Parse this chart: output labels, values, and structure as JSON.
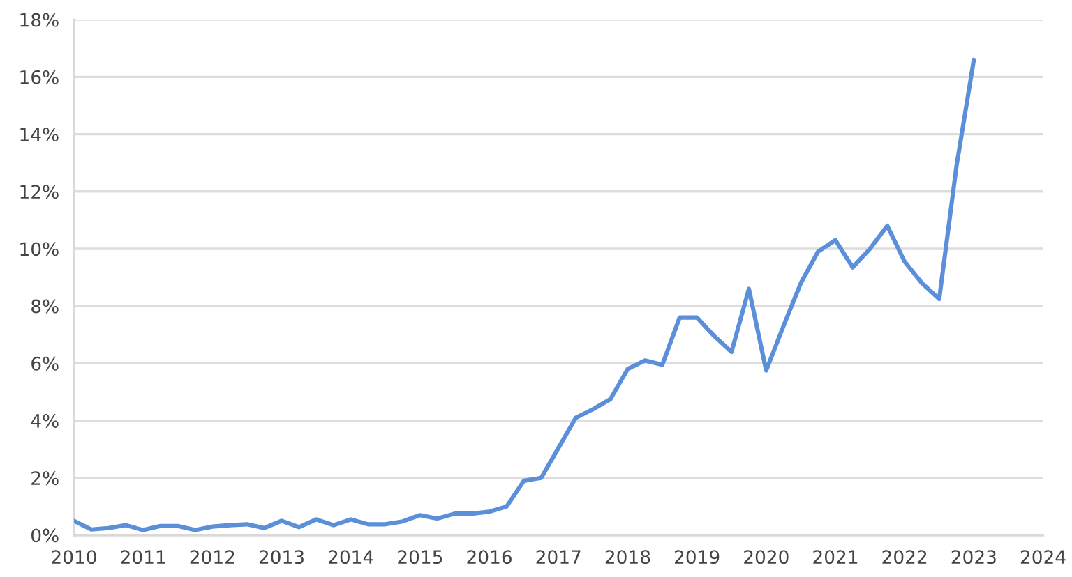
{
  "chart_data": {
    "type": "line",
    "x": [
      2010.0,
      2010.25,
      2010.5,
      2010.75,
      2011.0,
      2011.25,
      2011.5,
      2011.75,
      2012.0,
      2012.25,
      2012.5,
      2012.75,
      2013.0,
      2013.25,
      2013.5,
      2013.75,
      2014.0,
      2014.25,
      2014.5,
      2014.75,
      2015.0,
      2015.25,
      2015.5,
      2015.75,
      2016.0,
      2016.25,
      2016.5,
      2016.75,
      2017.0,
      2017.25,
      2017.5,
      2017.75,
      2018.0,
      2018.25,
      2018.5,
      2018.75,
      2019.0,
      2019.25,
      2019.5,
      2019.75,
      2020.0,
      2020.25,
      2020.5,
      2020.75,
      2021.0,
      2021.25,
      2021.5,
      2021.75,
      2022.0,
      2022.25,
      2022.5,
      2022.75,
      2023.0
    ],
    "series": [
      {
        "color": "#5b8fda",
        "values": [
          0.5,
          0.2,
          0.25,
          0.35,
          0.18,
          0.32,
          0.32,
          0.18,
          0.3,
          0.35,
          0.38,
          0.25,
          0.5,
          0.28,
          0.55,
          0.35,
          0.55,
          0.38,
          0.38,
          0.48,
          0.7,
          0.58,
          0.75,
          0.75,
          0.82,
          1.0,
          1.9,
          2.0,
          3.05,
          4.1,
          4.4,
          4.75,
          5.8,
          6.1,
          5.95,
          7.6,
          7.6,
          6.95,
          6.4,
          8.6,
          5.75,
          7.3,
          8.8,
          9.9,
          10.3,
          9.35,
          10.0,
          10.8,
          9.55,
          8.8,
          8.25,
          12.9,
          16.6
        ]
      }
    ],
    "xlim": [
      2010,
      2024
    ],
    "xticks": [
      2010,
      2011,
      2012,
      2013,
      2014,
      2015,
      2016,
      2017,
      2018,
      2019,
      2020,
      2021,
      2022,
      2023,
      2024
    ],
    "ylim": [
      0,
      18
    ],
    "yticks": [
      {
        "value": 0,
        "label": "0%"
      },
      {
        "value": 2,
        "label": "2%"
      },
      {
        "value": 4,
        "label": "4%"
      },
      {
        "value": 6,
        "label": "6%"
      },
      {
        "value": 8,
        "label": "8%"
      },
      {
        "value": 10,
        "label": "10%"
      },
      {
        "value": 12,
        "label": "12%"
      },
      {
        "value": 14,
        "label": "14%"
      },
      {
        "value": 16,
        "label": "16%"
      },
      {
        "value": 18,
        "label": "18%"
      }
    ],
    "grid": "y",
    "line_style": "solid"
  }
}
